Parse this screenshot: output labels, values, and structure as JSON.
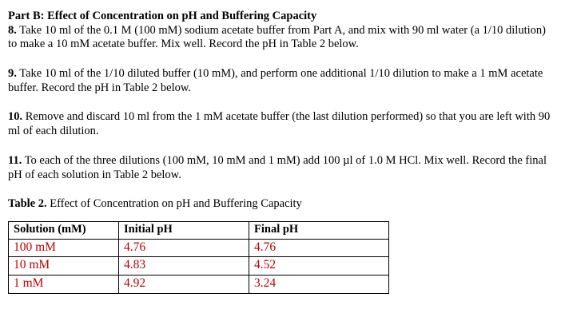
{
  "document": {
    "heading": "Part B: Effect of Concentration on pH and Buffering Capacity",
    "steps": [
      {
        "number": "8.",
        "text": " Take 10 ml of the 0.1 M (100 mM) sodium acetate buffer from Part A, and mix with 90 ml water (a 1/10 dilution) to make a 10 mM acetate buffer. Mix well. Record the pH in Table 2 below."
      },
      {
        "number": "9.",
        "text": " Take 10 ml of the 1/10 diluted buffer (10 mM), and perform one additional 1/10 dilution to make a 1 mM acetate buffer. Record the pH in Table 2 below."
      },
      {
        "number": "10.",
        "text": " Remove and discard 10 ml from the 1 mM acetate buffer (the last dilution performed) so that you are left with 90 ml of each dilution."
      },
      {
        "number": "11.",
        "text": " To each of the three dilutions (100 mM, 10 mM and 1 mM) add 100 µl of 1.0 M HCl. Mix well. Record the final pH of each solution in Table 2 below."
      }
    ],
    "table_caption": {
      "label": "Table 2.",
      "text": " Effect of Concentration on pH and Buffering Capacity"
    },
    "table": {
      "headers": [
        "Solution (mM)",
        "Initial pH",
        "Final pH"
      ],
      "rows": [
        [
          "100 mM",
          "4.76",
          "4.76"
        ],
        [
          "10 mM",
          "4.83",
          "4.52"
        ],
        [
          "1 mM",
          "4.92",
          "3.24"
        ]
      ]
    },
    "colors": {
      "data_text": "#c00000",
      "border": "#000000"
    }
  }
}
